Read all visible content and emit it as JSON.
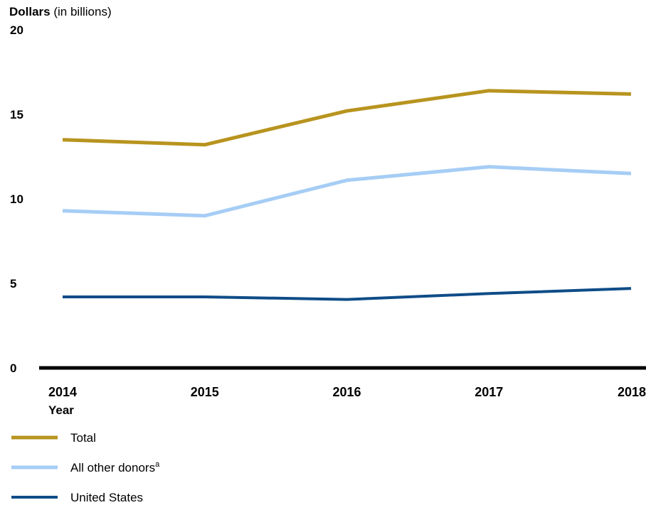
{
  "chart_data": {
    "type": "line",
    "ylabel_bold": "Dollars",
    "ylabel_rest": " (in billions)",
    "xlabel": "Year",
    "ylim": [
      0,
      20
    ],
    "yticks": [
      "0",
      "5",
      "10",
      "15",
      "20"
    ],
    "x": [
      "2014",
      "2015",
      "2016",
      "2017",
      "2018"
    ],
    "series": [
      {
        "name": "Total",
        "color": "#b8941f",
        "width": 5,
        "values": [
          13.5,
          13.2,
          15.2,
          16.4,
          16.2
        ]
      },
      {
        "name": "All other donors",
        "name_sup": "a",
        "color": "#a6cdf5",
        "width": 5,
        "values": [
          9.3,
          9.0,
          11.1,
          11.9,
          11.5
        ]
      },
      {
        "name": "United States",
        "color": "#0e4c87",
        "width": 4,
        "values": [
          4.2,
          4.2,
          4.05,
          4.4,
          4.7
        ]
      }
    ],
    "grid": false,
    "legend_position": "bottom-left"
  }
}
